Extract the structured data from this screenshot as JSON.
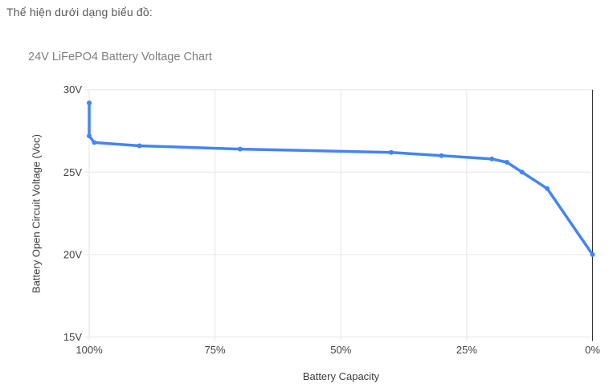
{
  "page": {
    "intro_text": "Thể hiện dưới dạng biểu đồ:"
  },
  "chart_data": {
    "type": "line",
    "title": "24V LiFePO4 Battery Voltage Chart",
    "xlabel": "Battery Capacity",
    "ylabel": "Battery Open Circuit Voltage (Voc)",
    "grid": true,
    "legend": "none",
    "x_axis": {
      "min": 100,
      "max": 0,
      "reversed": true,
      "unit": "%",
      "ticks": [
        {
          "value": 100,
          "label": "100%"
        },
        {
          "value": 75,
          "label": "75%"
        },
        {
          "value": 50,
          "label": "50%"
        },
        {
          "value": 25,
          "label": "25%"
        },
        {
          "value": 0,
          "label": "0%"
        }
      ]
    },
    "y_axis": {
      "min": 15,
      "max": 30,
      "unit": "V",
      "ticks": [
        {
          "value": 30,
          "label": "30V"
        },
        {
          "value": 25,
          "label": "25V"
        },
        {
          "value": 20,
          "label": "20V"
        },
        {
          "value": 15,
          "label": "15V"
        }
      ]
    },
    "series": [
      {
        "name": "Battery Open Circuit Voltage",
        "color": "#4285f4",
        "points": [
          {
            "capacity_pct": 100,
            "voltage_v": 29.2
          },
          {
            "capacity_pct": 100,
            "voltage_v": 27.2
          },
          {
            "capacity_pct": 99,
            "voltage_v": 26.8
          },
          {
            "capacity_pct": 90,
            "voltage_v": 26.6
          },
          {
            "capacity_pct": 70,
            "voltage_v": 26.4
          },
          {
            "capacity_pct": 40,
            "voltage_v": 26.2
          },
          {
            "capacity_pct": 30,
            "voltage_v": 26.0
          },
          {
            "capacity_pct": 20,
            "voltage_v": 25.8
          },
          {
            "capacity_pct": 17,
            "voltage_v": 25.6
          },
          {
            "capacity_pct": 14,
            "voltage_v": 25.0
          },
          {
            "capacity_pct": 9,
            "voltage_v": 24.0
          },
          {
            "capacity_pct": 0,
            "voltage_v": 20.0
          }
        ]
      }
    ],
    "colors": {
      "line": "#4285f4",
      "gridline": "#e6e6e6",
      "baseline": "#333333",
      "tick_label": "#424242",
      "axis_title": "#3c3c3c",
      "title": "#7f7f7f",
      "text": "#58585a",
      "background": "#ffffff"
    }
  }
}
